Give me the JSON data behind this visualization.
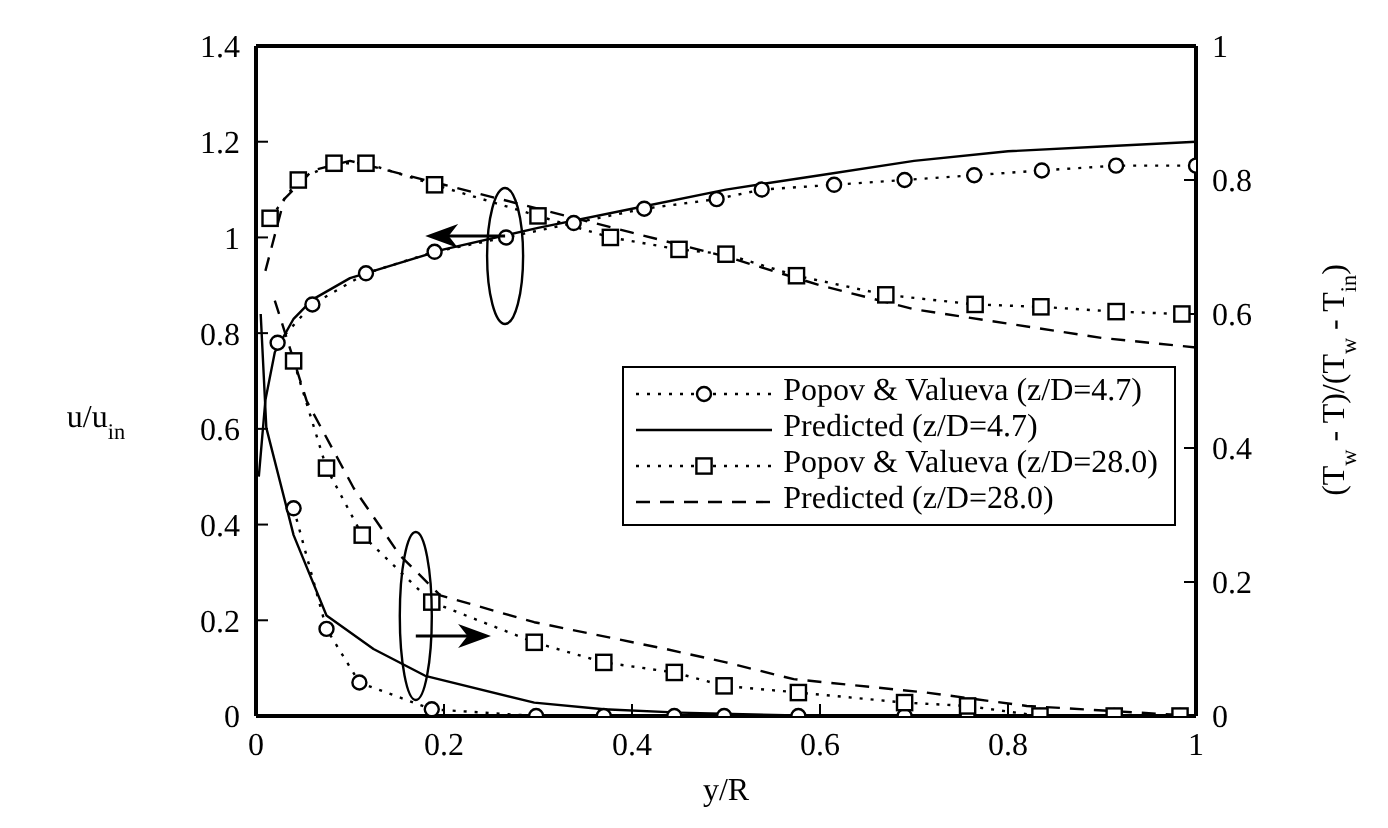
{
  "chart_data": {
    "type": "line",
    "xlabel": "y/R",
    "ylabel": "u/u$_{in}$",
    "y2label": "(T$_{w}$ - T)/(T$_{w}$ - T$_{in}$)",
    "xlim": [
      0,
      1
    ],
    "xticks": [
      0,
      0.2,
      0.4,
      0.6,
      0.8,
      1
    ],
    "ylim": [
      0,
      1.4
    ],
    "yticks": [
      0,
      0.2,
      0.4,
      0.6,
      0.8,
      1,
      1.2,
      1.4
    ],
    "y2lim": [
      0,
      1
    ],
    "y2ticks": [
      0,
      0.2,
      0.4,
      0.6,
      0.8,
      1
    ],
    "legend": "right",
    "series": [
      {
        "name": "Popov & Valueva (z/D=4.7)",
        "color": "#000000",
        "marker": "circle",
        "line_style": "dotted",
        "x": [
          0.023,
          0.06,
          0.117,
          0.19,
          0.266,
          0.338,
          0.413,
          0.49,
          0.538,
          0.615,
          0.69,
          0.764,
          0.836,
          0.915,
          1.0
        ],
        "values": [
          0.78,
          0.86,
          0.925,
          0.97,
          1.0,
          1.03,
          1.06,
          1.08,
          1.1,
          1.11,
          1.12,
          1.13,
          1.14,
          1.15,
          1.15
        ]
      },
      {
        "name": "Predicted (z/D=4.7)",
        "color": "#000000",
        "marker": "none",
        "line_style": "solid",
        "x": [
          0.003,
          0.01,
          0.02,
          0.04,
          0.06,
          0.1,
          0.2,
          0.3,
          0.4,
          0.5,
          0.6,
          0.7,
          0.8,
          0.9,
          1.0
        ],
        "values": [
          0.5,
          0.66,
          0.76,
          0.83,
          0.87,
          0.915,
          0.975,
          1.02,
          1.06,
          1.1,
          1.13,
          1.16,
          1.18,
          1.19,
          1.2
        ]
      },
      {
        "name": "Popov & Valueva (z/D=28.0)",
        "color": "#000000",
        "marker": "square",
        "line_style": "dotted",
        "x": [
          0.015,
          0.045,
          0.083,
          0.117,
          0.19,
          0.3,
          0.377,
          0.45,
          0.5,
          0.575,
          0.67,
          0.765,
          0.835,
          0.915,
          0.985
        ],
        "values": [
          1.04,
          1.12,
          1.155,
          1.155,
          1.11,
          1.045,
          1.0,
          0.975,
          0.965,
          0.92,
          0.88,
          0.86,
          0.855,
          0.845,
          0.84
        ]
      },
      {
        "name": "Predicted (z/D=28.0)",
        "color": "#000000",
        "marker": "none",
        "line_style": "dashed",
        "x": [
          0.01,
          0.03,
          0.06,
          0.1,
          0.2,
          0.3,
          0.4,
          0.5,
          0.6,
          0.7,
          0.8,
          0.9,
          1.0
        ],
        "values": [
          0.93,
          1.08,
          1.14,
          1.16,
          1.11,
          1.06,
          1.01,
          0.96,
          0.9,
          0.85,
          0.82,
          0.79,
          0.77
        ]
      },
      {
        "color": "#000000",
        "marker": "circle",
        "line_style": "dotted",
        "axis": "y2",
        "x": [
          0.04,
          0.075,
          0.11,
          0.187,
          0.298,
          0.37,
          0.445,
          0.498,
          0.577,
          0.69,
          0.757,
          0.834,
          0.913,
          0.983
        ],
        "values": [
          0.31,
          0.13,
          0.05,
          0.01,
          0,
          0,
          0,
          0,
          0,
          0,
          0,
          0,
          0,
          0
        ]
      },
      {
        "color": "#000000",
        "marker": "none",
        "line_style": "solid",
        "axis": "y2",
        "x": [
          0.005,
          0.011,
          0.04,
          0.075,
          0.125,
          0.18,
          0.296,
          0.37,
          0.45,
          0.6,
          0.8,
          1.0
        ],
        "values": [
          0.6,
          0.43,
          0.27,
          0.15,
          0.1,
          0.06,
          0.02,
          0.01,
          0.005,
          0,
          0,
          0
        ]
      },
      {
        "color": "#000000",
        "marker": "square",
        "line_style": "dotted",
        "axis": "y2",
        "x": [
          0.04,
          0.075,
          0.113,
          0.187,
          0.296,
          0.37,
          0.445,
          0.498,
          0.577,
          0.69,
          0.757,
          0.834,
          0.913,
          0.983
        ],
        "values": [
          0.53,
          0.37,
          0.27,
          0.17,
          0.11,
          0.08,
          0.065,
          0.045,
          0.035,
          0.02,
          0.015,
          0,
          0,
          0
        ]
      },
      {
        "color": "#000000",
        "marker": "none",
        "line_style": "dashed",
        "axis": "y2",
        "x": [
          0.02,
          0.054,
          0.104,
          0.153,
          0.196,
          0.296,
          0.436,
          0.5,
          0.572,
          0.713,
          0.82,
          1.0
        ],
        "values": [
          0.62,
          0.47,
          0.34,
          0.24,
          0.18,
          0.14,
          0.1,
          0.08,
          0.055,
          0.035,
          0.015,
          0
        ]
      }
    ]
  }
}
